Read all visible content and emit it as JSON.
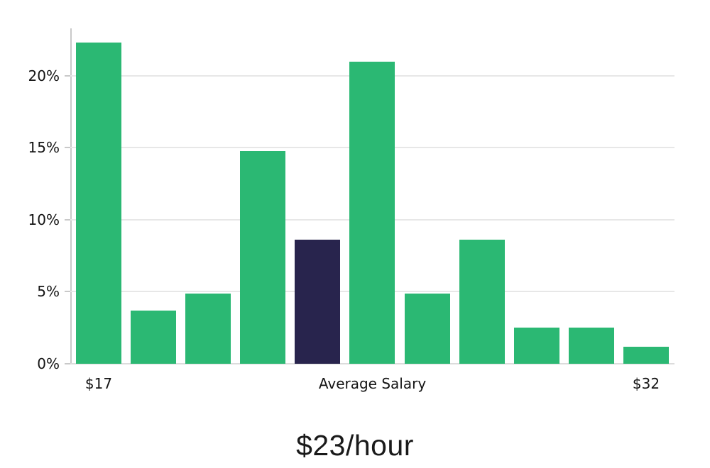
{
  "chart_data": {
    "type": "bar",
    "title": "$23/hour",
    "values": [
      22.3,
      3.7,
      4.9,
      14.8,
      8.6,
      21.0,
      4.9,
      8.6,
      2.5,
      2.5,
      1.2
    ],
    "highlight_index": 4,
    "y_axis": {
      "max": 23.3,
      "ticks": [
        {
          "value": 0,
          "label": "0%"
        },
        {
          "value": 5,
          "label": "5%"
        },
        {
          "value": 10,
          "label": "10%"
        },
        {
          "value": 15,
          "label": "15%"
        },
        {
          "value": 20,
          "label": "20%"
        }
      ]
    },
    "x_axis": {
      "tick_labels": [
        {
          "text": "$17",
          "anchor": "bar",
          "bar_index": 0
        },
        {
          "text": "Average Salary",
          "anchor": "plot-center"
        },
        {
          "text": "$32",
          "anchor": "bar",
          "bar_index": 10
        }
      ]
    },
    "colors": {
      "bar": "#2bb873",
      "highlight": "#28244d",
      "gridline": "#e7e7e7",
      "axis": "#c9c9c9",
      "text": "#141414"
    },
    "grid": true,
    "legend": null
  }
}
